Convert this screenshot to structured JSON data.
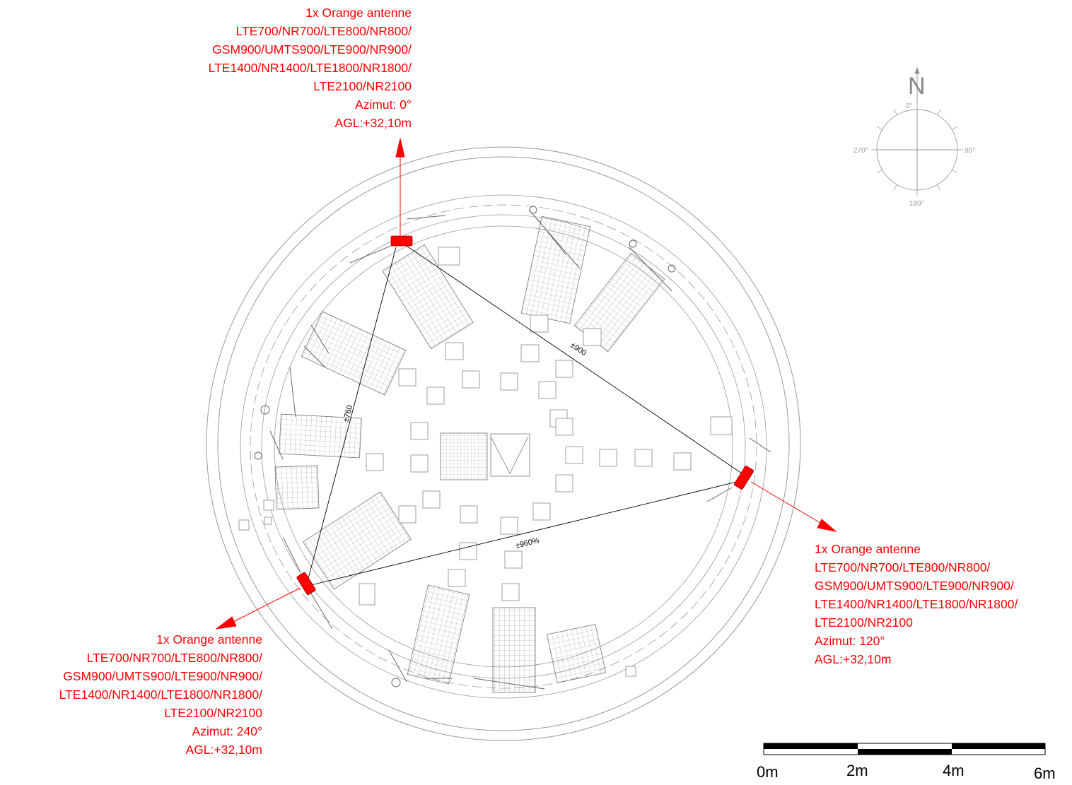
{
  "antennas": [
    {
      "id": "north",
      "title": "1x Orange antenne",
      "bands": [
        "LTE700/NR700/LTE800/NR800/",
        "GSM900/UMTS900/LTE900/NR900/",
        "LTE1400/NR1400/LTE1800/NR1800/",
        "LTE2100/NR2100"
      ],
      "azimuth": "Azimut: 0°",
      "agl": "AGL:+32,10m"
    },
    {
      "id": "east",
      "title": "1x Orange antenne",
      "bands": [
        "LTE700/NR700/LTE800/NR800/",
        "GSM900/UMTS900/LTE900/NR900/",
        "LTE1400/NR1400/LTE1800/NR1800/",
        "LTE2100/NR2100"
      ],
      "azimuth": "Azimut: 120°",
      "agl": "AGL:+32,10m"
    },
    {
      "id": "southwest",
      "title": "1x Orange antenne",
      "bands": [
        "LTE700/NR700/LTE800/NR800/",
        "GSM900/UMTS900/LTE900/NR900/",
        "LTE1400/NR1400/LTE1800/NR1800/",
        "LTE2100/NR2100"
      ],
      "azimuth": "Azimut: 240°",
      "agl": "AGL:+32,10m"
    }
  ],
  "dimensions": {
    "north_east": "±900",
    "north_southwest": "±760",
    "east_southwest": "±960%"
  },
  "compass": {
    "north_letter": "N",
    "deg_0": "0°",
    "deg_90": "90°",
    "deg_180": "180°",
    "deg_270": "270°"
  },
  "scale_bar": {
    "labels": [
      "0m",
      "2m",
      "4m",
      "6m"
    ]
  },
  "colors": {
    "antenna": "#ff0000",
    "drawing": "#888888",
    "dimension": "#000000"
  }
}
